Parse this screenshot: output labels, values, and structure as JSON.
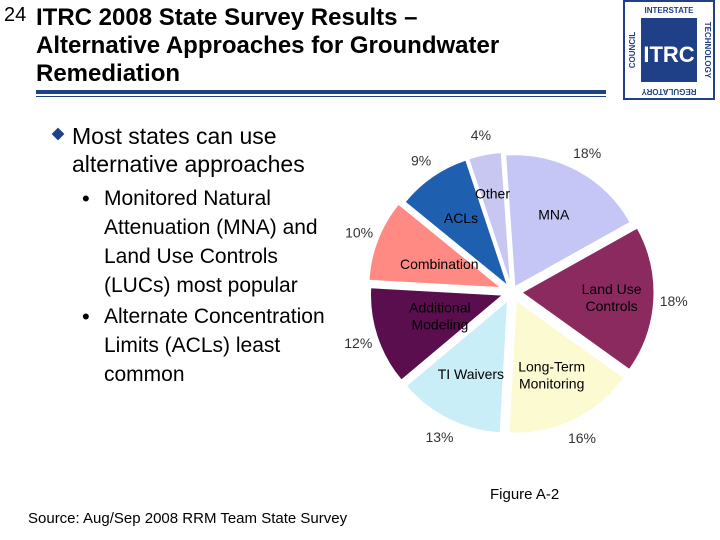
{
  "slide_number": "24",
  "title_lines": [
    "ITRC 2008 State Survey Results –",
    "Alternative Approaches for Groundwater",
    "Remediation"
  ],
  "logo": {
    "top": "INTERSTATE",
    "right": "TECHNOLOGY",
    "left": "COUNCIL",
    "bottom": "REGULATORY",
    "center": "ITRC"
  },
  "bullets": {
    "main": "Most states can use alternative approaches",
    "sub": [
      {
        "lines": [
          "Monitored Natural",
          "Attenuation (MNA) and",
          "Land Use Controls",
          "(LUCs) most popular"
        ]
      },
      {
        "lines": [
          "Alternate Concentration",
          "Limits (ACLs) least",
          "common"
        ]
      }
    ]
  },
  "source": "Source: Aug/Sep 2008 RRM Team State Survey",
  "figure_label": "Figure A-2",
  "chart_data": {
    "type": "pie",
    "slices": [
      {
        "label": "MNA",
        "value": 18,
        "pct_label": "18%",
        "color": "#c6c6f6"
      },
      {
        "label": "Land Use Controls",
        "value": 18,
        "pct_label": "18%",
        "color": "#8a2a5e"
      },
      {
        "label": "Long-Term Monitoring",
        "value": 16,
        "pct_label": "16%",
        "color": "#fbfad0"
      },
      {
        "label": "TI Waivers",
        "value": 13,
        "pct_label": "13%",
        "color": "#c9eef7"
      },
      {
        "label": "Additional Modeling",
        "value": 12,
        "pct_label": "12%",
        "color": "#5a0e4e"
      },
      {
        "label": "Combination",
        "value": 10,
        "pct_label": "10%",
        "color": "#ff8a84"
      },
      {
        "label": "ACLs",
        "value": 9,
        "pct_label": "9%",
        "color": "#1f5fb0"
      },
      {
        "label": "Other",
        "value": 4,
        "pct_label": "4%",
        "color": "#c7c7f2"
      }
    ]
  }
}
